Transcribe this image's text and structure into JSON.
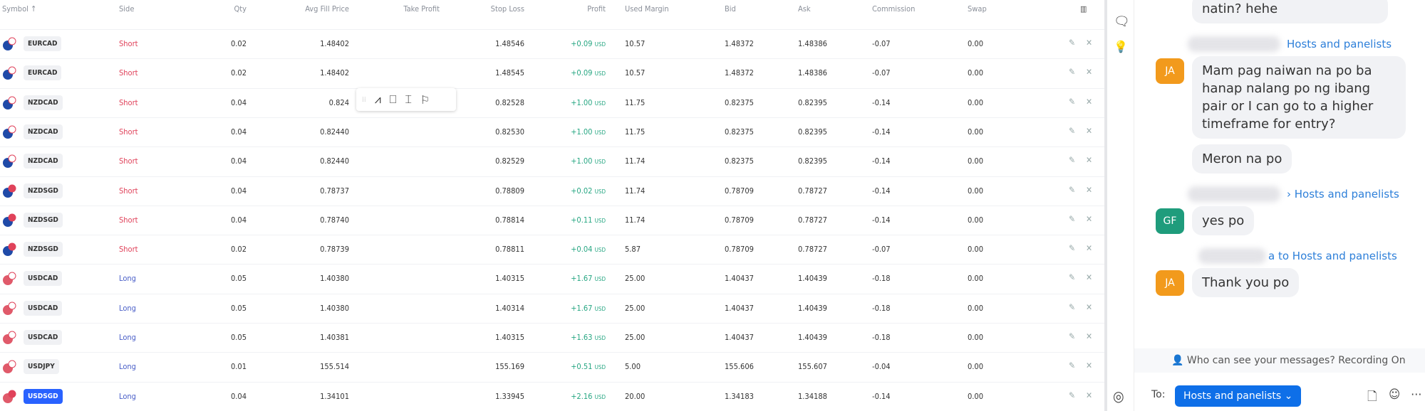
{
  "table": {
    "headers": {
      "symbol": "Symbol ↑",
      "side": "Side",
      "qty": "Qty",
      "avg": "Avg Fill Price",
      "tp": "Take Profit",
      "sl": "Stop Loss",
      "profit": "Profit",
      "margin": "Used Margin",
      "bid": "Bid",
      "ask": "Ask",
      "commission": "Commission",
      "swap": "Swap"
    },
    "currency": "USD",
    "rows": [
      {
        "symbol": "EURCAD",
        "side": "Short",
        "qty": "0.02",
        "avg": "1.48402",
        "tp": "",
        "sl": "1.48546",
        "profit": "+0.09",
        "margin": "10.57",
        "bid": "1.48372",
        "ask": "1.48386",
        "commission": "-0.07",
        "swap": "0.00"
      },
      {
        "symbol": "EURCAD",
        "side": "Short",
        "qty": "0.02",
        "avg": "1.48402",
        "tp": "",
        "sl": "1.48545",
        "profit": "+0.09",
        "margin": "10.57",
        "bid": "1.48372",
        "ask": "1.48386",
        "commission": "-0.07",
        "swap": "0.00"
      },
      {
        "symbol": "NZDCAD",
        "side": "Short",
        "qty": "0.04",
        "avg": "0.824",
        "tp": "",
        "sl": "0.82528",
        "profit": "+1.00",
        "margin": "11.75",
        "bid": "0.82375",
        "ask": "0.82395",
        "commission": "-0.14",
        "swap": "0.00"
      },
      {
        "symbol": "NZDCAD",
        "side": "Short",
        "qty": "0.04",
        "avg": "0.82440",
        "tp": "",
        "sl": "0.82530",
        "profit": "+1.00",
        "margin": "11.75",
        "bid": "0.82375",
        "ask": "0.82395",
        "commission": "-0.14",
        "swap": "0.00"
      },
      {
        "symbol": "NZDCAD",
        "side": "Short",
        "qty": "0.04",
        "avg": "0.82440",
        "tp": "",
        "sl": "0.82529",
        "profit": "+1.00",
        "margin": "11.74",
        "bid": "0.82375",
        "ask": "0.82395",
        "commission": "-0.14",
        "swap": "0.00"
      },
      {
        "symbol": "NZDSGD",
        "side": "Short",
        "qty": "0.04",
        "avg": "0.78737",
        "tp": "",
        "sl": "0.78809",
        "profit": "+0.02",
        "margin": "11.74",
        "bid": "0.78709",
        "ask": "0.78727",
        "commission": "-0.14",
        "swap": "0.00"
      },
      {
        "symbol": "NZDSGD",
        "side": "Short",
        "qty": "0.04",
        "avg": "0.78740",
        "tp": "",
        "sl": "0.78814",
        "profit": "+0.11",
        "margin": "11.74",
        "bid": "0.78709",
        "ask": "0.78727",
        "commission": "-0.14",
        "swap": "0.00"
      },
      {
        "symbol": "NZDSGD",
        "side": "Short",
        "qty": "0.02",
        "avg": "0.78739",
        "tp": "",
        "sl": "0.78811",
        "profit": "+0.04",
        "margin": "5.87",
        "bid": "0.78709",
        "ask": "0.78727",
        "commission": "-0.07",
        "swap": "0.00"
      },
      {
        "symbol": "USDCAD",
        "side": "Long",
        "qty": "0.05",
        "avg": "1.40380",
        "tp": "",
        "sl": "1.40315",
        "profit": "+1.67",
        "margin": "25.00",
        "bid": "1.40437",
        "ask": "1.40439",
        "commission": "-0.18",
        "swap": "0.00"
      },
      {
        "symbol": "USDCAD",
        "side": "Long",
        "qty": "0.05",
        "avg": "1.40380",
        "tp": "",
        "sl": "1.40314",
        "profit": "+1.67",
        "margin": "25.00",
        "bid": "1.40437",
        "ask": "1.40439",
        "commission": "-0.18",
        "swap": "0.00"
      },
      {
        "symbol": "USDCAD",
        "side": "Long",
        "qty": "0.05",
        "avg": "1.40381",
        "tp": "",
        "sl": "1.40315",
        "profit": "+1.63",
        "margin": "25.00",
        "bid": "1.40437",
        "ask": "1.40439",
        "commission": "-0.18",
        "swap": "0.00"
      },
      {
        "symbol": "USDJPY",
        "side": "Long",
        "qty": "0.01",
        "avg": "155.514",
        "tp": "",
        "sl": "155.169",
        "profit": "+0.51",
        "margin": "5.00",
        "bid": "155.606",
        "ask": "155.607",
        "commission": "-0.04",
        "swap": "0.00"
      },
      {
        "symbol": "USDSGD",
        "side": "Long",
        "qty": "0.04",
        "avg": "1.34101",
        "tp": "",
        "sl": "1.33945",
        "profit": "+2.16",
        "margin": "20.00",
        "bid": "1.34183",
        "ask": "1.34188",
        "commission": "-0.14",
        "swap": "0.00",
        "selected": true
      }
    ]
  },
  "colors": {
    "short": "#e0425a",
    "long": "#4a5fc8",
    "profit": "#26a682",
    "accent": "#2962ff",
    "chat_link": "#2d7fd9",
    "avatar_ja": "#f29a1c",
    "avatar_gf": "#1f9c7c"
  },
  "chat": {
    "messages": [
      {
        "text": "natin? hehe"
      },
      {
        "to": "Hosts and panelists",
        "avatar": "JA",
        "text": "Mam pag naiwan na po ba hanap nalang po ng ibang pair or I can go to a higher timeframe for entry?"
      },
      {
        "text": "Meron na po"
      },
      {
        "to": "› Hosts and panelists",
        "avatar": "GF",
        "text": "yes po"
      },
      {
        "to": "a to Hosts and panelists",
        "avatar": "JA",
        "text": "Thank you po"
      }
    ],
    "notice": "Who can see your messages? Recording On",
    "to_label": "To:",
    "recipient": "Hosts and panelists"
  }
}
